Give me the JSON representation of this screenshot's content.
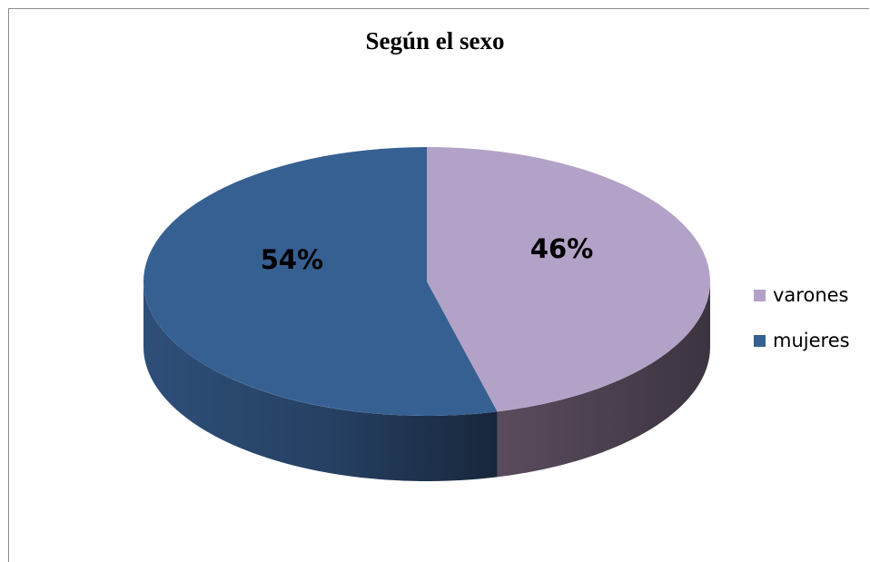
{
  "chart_data": {
    "type": "pie",
    "title": "Según el sexo",
    "categories": [
      "varones",
      "mujeres"
    ],
    "values": [
      46,
      54
    ],
    "data_labels": [
      "46%",
      "54%"
    ],
    "colors": [
      "#b3a2c7",
      "#376092"
    ],
    "three_d": true,
    "legend": {
      "placement": "right",
      "items": [
        {
          "label": "varones",
          "color": "#b3a2c7"
        },
        {
          "label": "mujeres",
          "color": "#376092"
        }
      ]
    }
  }
}
